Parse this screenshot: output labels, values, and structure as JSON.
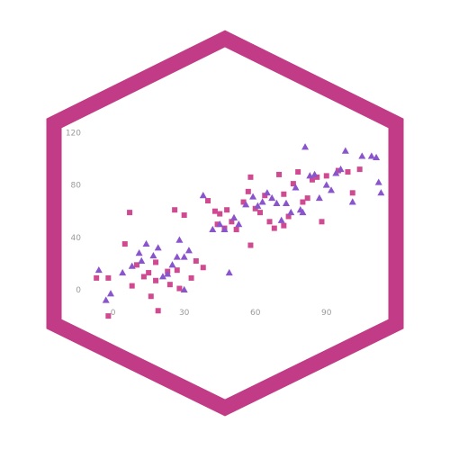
{
  "colors": {
    "frame": "#c23b86",
    "background": "#ffffff",
    "series_square": "#d04a92",
    "series_triangle": "#8a55cc",
    "tick_text": "#9a9a9a"
  },
  "chart_data": {
    "type": "scatter",
    "title": "",
    "xlabel": "",
    "ylabel": "",
    "xlim": [
      -12,
      114
    ],
    "ylim": [
      -22,
      123
    ],
    "x_ticks": [
      0,
      30,
      60,
      90
    ],
    "x_tick_labels": [
      "0",
      "30",
      "60",
      "90"
    ],
    "y_ticks": [
      0,
      40,
      80,
      120
    ],
    "y_tick_labels": [
      "0",
      "40",
      "80",
      "120"
    ],
    "grid": false,
    "legend": "none",
    "series": [
      {
        "marker": "square",
        "color": "#d04a92",
        "points": [
          [
            -7,
            9
          ],
          [
            -2,
            9
          ],
          [
            -2,
            -20
          ],
          [
            5,
            35
          ],
          [
            7,
            59
          ],
          [
            8,
            3
          ],
          [
            10,
            19
          ],
          [
            13,
            10
          ],
          [
            15,
            13
          ],
          [
            16,
            -5
          ],
          [
            18,
            7
          ],
          [
            18,
            21
          ],
          [
            19,
            -16
          ],
          [
            23,
            14
          ],
          [
            24,
            4
          ],
          [
            26,
            61
          ],
          [
            27,
            15
          ],
          [
            28,
            1
          ],
          [
            30,
            57
          ],
          [
            33,
            9
          ],
          [
            35,
            22
          ],
          [
            38,
            17
          ],
          [
            40,
            68
          ],
          [
            43,
            60
          ],
          [
            44,
            50
          ],
          [
            45,
            58
          ],
          [
            47,
            47
          ],
          [
            48,
            61
          ],
          [
            50,
            52
          ],
          [
            52,
            46
          ],
          [
            55,
            67
          ],
          [
            57,
            75
          ],
          [
            58,
            34
          ],
          [
            58,
            86
          ],
          [
            60,
            62
          ],
          [
            62,
            59
          ],
          [
            64,
            72
          ],
          [
            66,
            52
          ],
          [
            68,
            47
          ],
          [
            70,
            88
          ],
          [
            72,
            49
          ],
          [
            72,
            73
          ],
          [
            74,
            56
          ],
          [
            76,
            81
          ],
          [
            78,
            90
          ],
          [
            80,
            67
          ],
          [
            82,
            70
          ],
          [
            84,
            84
          ],
          [
            86,
            86
          ],
          [
            88,
            52
          ],
          [
            90,
            87
          ],
          [
            95,
            91
          ],
          [
            99,
            90
          ],
          [
            101,
            74
          ],
          [
            104,
            92
          ]
        ]
      },
      {
        "marker": "triangle",
        "color": "#8a55cc",
        "points": [
          [
            -6,
            15
          ],
          [
            -3,
            -8
          ],
          [
            -1,
            -3
          ],
          [
            4,
            13
          ],
          [
            8,
            18
          ],
          [
            11,
            28
          ],
          [
            12,
            22
          ],
          [
            14,
            35
          ],
          [
            17,
            26
          ],
          [
            19,
            32
          ],
          [
            21,
            10
          ],
          [
            23,
            12
          ],
          [
            25,
            19
          ],
          [
            27,
            25
          ],
          [
            28,
            38
          ],
          [
            30,
            25
          ],
          [
            30,
            0
          ],
          [
            32,
            30
          ],
          [
            38,
            72
          ],
          [
            42,
            46
          ],
          [
            45,
            50
          ],
          [
            47,
            46
          ],
          [
            49,
            13
          ],
          [
            51,
            55
          ],
          [
            53,
            50
          ],
          [
            56,
            65
          ],
          [
            59,
            71
          ],
          [
            61,
            64
          ],
          [
            63,
            67
          ],
          [
            65,
            74
          ],
          [
            67,
            70
          ],
          [
            69,
            66
          ],
          [
            71,
            53
          ],
          [
            73,
            66
          ],
          [
            75,
            59
          ],
          [
            77,
            78
          ],
          [
            79,
            61
          ],
          [
            80,
            59
          ],
          [
            81,
            109
          ],
          [
            83,
            87
          ],
          [
            85,
            88
          ],
          [
            87,
            70
          ],
          [
            90,
            80
          ],
          [
            92,
            76
          ],
          [
            94,
            89
          ],
          [
            96,
            92
          ],
          [
            98,
            106
          ],
          [
            101,
            67
          ],
          [
            105,
            102
          ],
          [
            109,
            102
          ],
          [
            111,
            101
          ],
          [
            112,
            82
          ],
          [
            113,
            74
          ]
        ]
      }
    ]
  }
}
